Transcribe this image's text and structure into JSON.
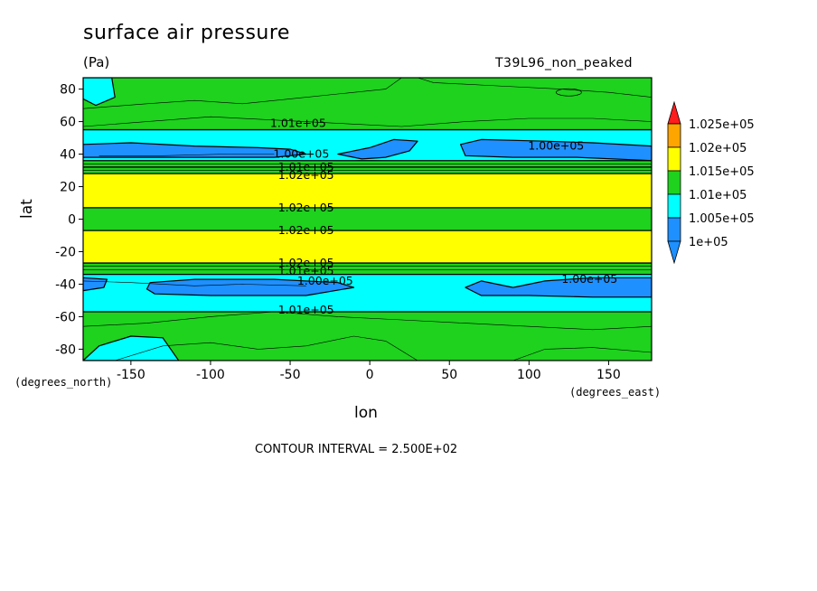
{
  "chart_data": {
    "type": "contour",
    "title": "surface air pressure",
    "units": "(Pa)",
    "dataset": "T39L96_non_peaked",
    "xlabel": "lon",
    "ylabel": "lat",
    "x_units_label": "(degrees_east)",
    "y_units_label": "(degrees_north)",
    "xlim": [
      -180,
      177
    ],
    "ylim": [
      -87,
      87
    ],
    "xticks": [
      -150,
      -100,
      -50,
      0,
      50,
      100,
      150
    ],
    "yticks": [
      -80,
      -60,
      -40,
      -20,
      0,
      20,
      40,
      60,
      80
    ],
    "contour_interval_text": "CONTOUR INTERVAL = 2.500E+02",
    "colors": {
      "deep_blue": "#1e90ff",
      "cyan": "#00ffff",
      "green": "#1ed21e",
      "yellow": "#ffff00",
      "orange": "#ffa500",
      "red": "#ff1e1e"
    },
    "legend": {
      "placement": "right",
      "levels": [
        "1.025e+05",
        "1.02e+05",
        "1.015e+05",
        "1.01e+05",
        "1.005e+05",
        "1e+05"
      ]
    },
    "bands": [
      {
        "lat_from": 55,
        "lat_to": 87,
        "color": "green"
      },
      {
        "lat_from": 36,
        "lat_to": 55,
        "color": "cyan"
      },
      {
        "lat_from": 32,
        "lat_to": 36,
        "color": "green"
      },
      {
        "lat_from": 28,
        "lat_to": 32,
        "color": "green"
      },
      {
        "lat_from": 7,
        "lat_to": 28,
        "color": "yellow"
      },
      {
        "lat_from": -7,
        "lat_to": 7,
        "color": "green"
      },
      {
        "lat_from": -27,
        "lat_to": -7,
        "color": "yellow"
      },
      {
        "lat_from": -34,
        "lat_to": -27,
        "color": "green"
      },
      {
        "lat_from": -57,
        "lat_to": -34,
        "color": "cyan"
      },
      {
        "lat_from": -87,
        "lat_to": -57,
        "color": "green"
      }
    ],
    "low_regions": [
      {
        "color": "deep_blue",
        "points": [
          [
            -180,
            46
          ],
          [
            -150,
            47
          ],
          [
            -110,
            45
          ],
          [
            -70,
            44
          ],
          [
            -50,
            43
          ],
          [
            -40,
            40
          ],
          [
            -60,
            38
          ],
          [
            -110,
            38
          ],
          [
            -150,
            38
          ],
          [
            -180,
            38
          ]
        ]
      },
      {
        "color": "deep_blue",
        "points": [
          [
            -20,
            40
          ],
          [
            0,
            44
          ],
          [
            15,
            49
          ],
          [
            30,
            48
          ],
          [
            25,
            42
          ],
          [
            10,
            38
          ],
          [
            -5,
            37
          ]
        ]
      },
      {
        "color": "deep_blue",
        "points": [
          [
            57,
            46
          ],
          [
            70,
            49
          ],
          [
            110,
            48
          ],
          [
            140,
            47
          ],
          [
            177,
            45
          ],
          [
            177,
            36
          ],
          [
            130,
            38
          ],
          [
            90,
            38
          ],
          [
            60,
            39
          ]
        ]
      },
      {
        "color": "deep_blue",
        "points": [
          [
            -180,
            -36
          ],
          [
            -165,
            -37
          ],
          [
            -167,
            -42
          ],
          [
            -180,
            -44
          ]
        ]
      },
      {
        "color": "deep_blue",
        "points": [
          [
            -138,
            -39
          ],
          [
            -110,
            -37
          ],
          [
            -60,
            -37
          ],
          [
            -20,
            -39
          ],
          [
            -10,
            -42
          ],
          [
            -40,
            -47
          ],
          [
            -100,
            -47
          ],
          [
            -135,
            -46
          ],
          [
            -140,
            -43
          ]
        ]
      },
      {
        "color": "deep_blue",
        "points": [
          [
            60,
            -42
          ],
          [
            70,
            -38
          ],
          [
            90,
            -42
          ],
          [
            110,
            -38
          ],
          [
            140,
            -36
          ],
          [
            177,
            -36
          ],
          [
            177,
            -48
          ],
          [
            140,
            -48
          ],
          [
            100,
            -47
          ],
          [
            70,
            -47
          ]
        ]
      },
      {
        "color": "cyan",
        "points": [
          [
            -180,
            -87
          ],
          [
            -170,
            -78
          ],
          [
            -150,
            -72
          ],
          [
            -130,
            -73
          ],
          [
            -120,
            -87
          ]
        ]
      },
      {
        "color": "cyan",
        "points": [
          [
            -180,
            74
          ],
          [
            -172,
            70
          ],
          [
            -160,
            75
          ],
          [
            -162,
            87
          ],
          [
            -180,
            87
          ]
        ]
      }
    ],
    "thin_contours": [
      [
        [
          -180,
          68
        ],
        [
          -140,
          71
        ],
        [
          -110,
          73
        ],
        [
          -80,
          71
        ],
        [
          -50,
          74
        ],
        [
          -20,
          77
        ],
        [
          10,
          80
        ],
        [
          20,
          87
        ]
      ],
      [
        [
          30,
          87
        ],
        [
          40,
          84
        ],
        [
          80,
          82
        ],
        [
          120,
          80
        ],
        [
          150,
          78
        ],
        [
          177,
          75
        ]
      ],
      [
        [
          -180,
          57
        ],
        [
          -140,
          60
        ],
        [
          -100,
          63
        ],
        [
          -60,
          61
        ],
        [
          -20,
          59
        ],
        [
          20,
          57
        ],
        [
          60,
          60
        ],
        [
          100,
          62
        ],
        [
          140,
          62
        ],
        [
          177,
          60
        ]
      ],
      [
        [
          -180,
          -66
        ],
        [
          -140,
          -64
        ],
        [
          -100,
          -60
        ],
        [
          -60,
          -57
        ],
        [
          -20,
          -60
        ],
        [
          20,
          -62
        ],
        [
          60,
          -64
        ],
        [
          100,
          -66
        ],
        [
          140,
          -68
        ],
        [
          177,
          -66
        ]
      ],
      [
        [
          -160,
          -87
        ],
        [
          -130,
          -78
        ],
        [
          -100,
          -76
        ],
        [
          -70,
          -80
        ],
        [
          -40,
          -78
        ],
        [
          -10,
          -72
        ],
        [
          10,
          -75
        ],
        [
          30,
          -87
        ]
      ],
      [
        [
          90,
          -87
        ],
        [
          110,
          -80
        ],
        [
          140,
          -79
        ],
        [
          177,
          -82
        ]
      ],
      [
        [
          -170,
          39
        ],
        [
          -130,
          39
        ],
        [
          -90,
          40
        ],
        [
          -60,
          40
        ]
      ],
      [
        [
          -180,
          -38
        ],
        [
          -150,
          -39
        ],
        [
          -110,
          -41
        ],
        [
          -80,
          -40
        ],
        [
          -40,
          -41
        ]
      ]
    ],
    "contour_labels": [
      {
        "text": "1.01e+05",
        "lon": -45,
        "lat": 59
      },
      {
        "text": "1.00e+05",
        "lon": -43,
        "lat": 40
      },
      {
        "text": "1.00e+05",
        "lon": 117,
        "lat": 45
      },
      {
        "text": "1.01e+05",
        "lon": -40,
        "lat": 32
      },
      {
        "text": "1.02e+05",
        "lon": -40,
        "lat": 27
      },
      {
        "text": "1.02e+05",
        "lon": -40,
        "lat": 7
      },
      {
        "text": "1.02e+05",
        "lon": -40,
        "lat": -7
      },
      {
        "text": "1.02e+05",
        "lon": -40,
        "lat": -27
      },
      {
        "text": "1.01e+05",
        "lon": -40,
        "lat": -32
      },
      {
        "text": "1.00e+05",
        "lon": -28,
        "lat": -38
      },
      {
        "text": "1.00e+05",
        "lon": 138,
        "lat": -37
      },
      {
        "text": "1.01e+05",
        "lon": -40,
        "lat": -56
      }
    ]
  }
}
